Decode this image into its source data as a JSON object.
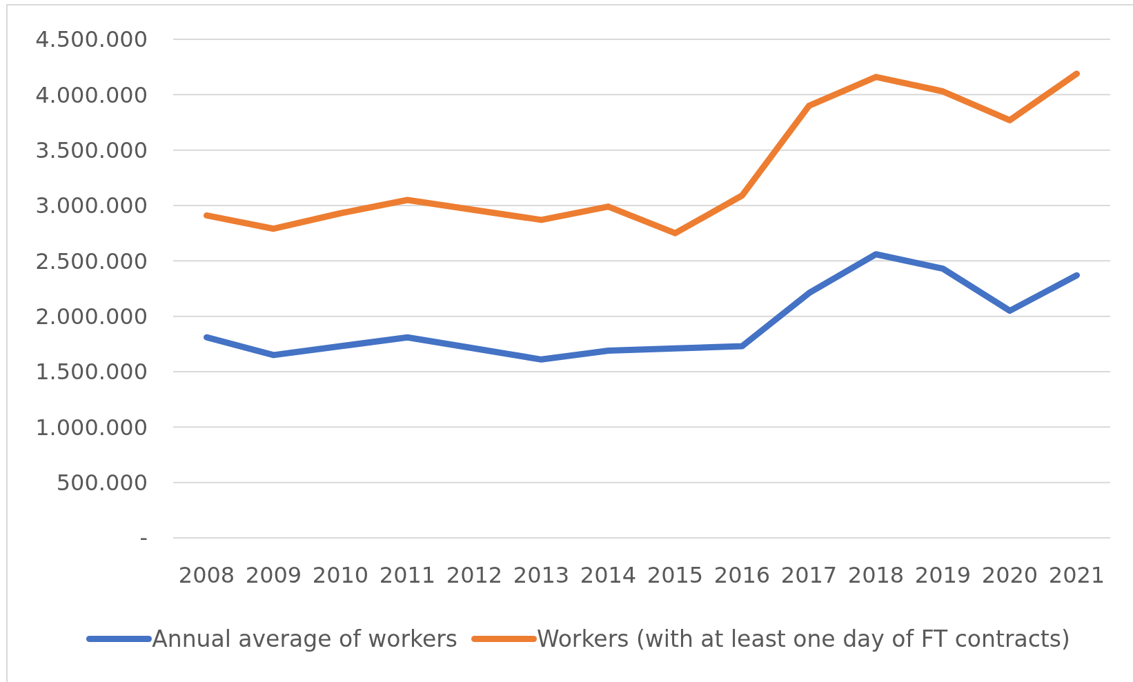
{
  "chart_data": {
    "type": "line",
    "categories": [
      "2008",
      "2009",
      "2010",
      "2011",
      "2012",
      "2013",
      "2014",
      "2015",
      "2016",
      "2017",
      "2018",
      "2019",
      "2020",
      "2021"
    ],
    "series": [
      {
        "name": "Annual average of workers",
        "color": "#4472c4",
        "values": [
          1810000,
          1650000,
          1730000,
          1810000,
          1710000,
          1610000,
          1690000,
          1710000,
          1730000,
          2210000,
          2560000,
          2430000,
          2050000,
          2370000
        ]
      },
      {
        "name": "Workers (with at least one day of FT contracts)",
        "color": "#ed7d31",
        "values": [
          2910000,
          2790000,
          2930000,
          3050000,
          2960000,
          2870000,
          2990000,
          2750000,
          3090000,
          3900000,
          4160000,
          4030000,
          3770000,
          4190000
        ]
      }
    ],
    "ylim": [
      0,
      4500000
    ],
    "yticks": [
      {
        "value": 0,
        "label": "-"
      },
      {
        "value": 500000,
        "label": "500.000"
      },
      {
        "value": 1000000,
        "label": "1.000.000"
      },
      {
        "value": 1500000,
        "label": "1.500.000"
      },
      {
        "value": 2000000,
        "label": "2.000.000"
      },
      {
        "value": 2500000,
        "label": "2.500.000"
      },
      {
        "value": 3000000,
        "label": "3.000.000"
      },
      {
        "value": 3500000,
        "label": "3.500.000"
      },
      {
        "value": 4000000,
        "label": "4.000.000"
      },
      {
        "value": 4500000,
        "label": "4.500.000"
      }
    ],
    "grid": "y",
    "legend": "bottom"
  }
}
